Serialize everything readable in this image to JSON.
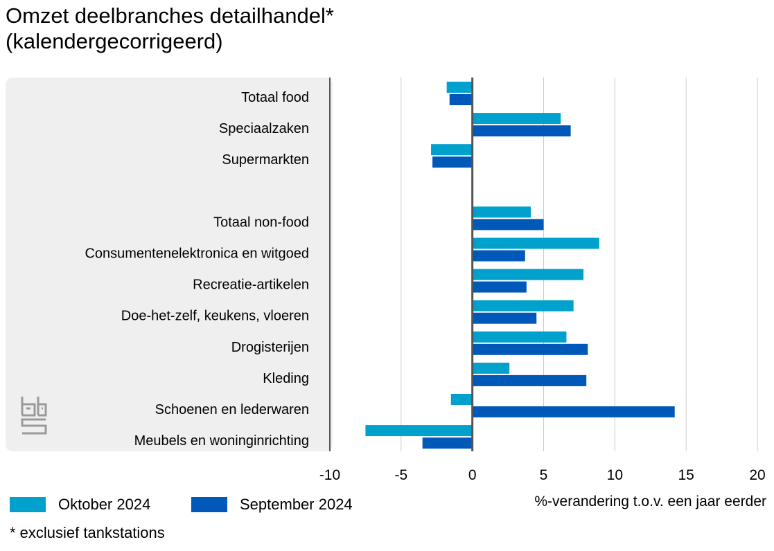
{
  "title_line1": "Omzet deelbranches detailhandel*",
  "title_line2": "(kalendergecorrigeerd)",
  "footnote": "* exclusief tankstations",
  "colors": {
    "oktober": "#00A1CD",
    "september": "#0058B8",
    "panel": "#EFEFEF",
    "grid": "#CCCCCC",
    "axis": "#555555"
  },
  "chart_data": {
    "type": "bar",
    "orientation": "horizontal",
    "title": "Omzet deelbranches detailhandel* (kalendergecorrigeerd)",
    "xlabel": "%-verandering t.o.v. een jaar eerder",
    "xlim": [
      -10,
      20
    ],
    "xticks": [
      -10,
      -5,
      0,
      5,
      10,
      15,
      20
    ],
    "categories": [
      "Totaal food",
      "Speciaalzaken",
      "Supermarkten",
      "",
      "Totaal non-food",
      "Consumentenelektronica en witgoed",
      "Recreatie-artikelen",
      "Doe-het-zelf, keukens, vloeren",
      "Drogisterijen",
      "Kleding",
      "Schoenen en lederwaren",
      "Meubels en woninginrichting"
    ],
    "series": [
      {
        "name": "Oktober 2024",
        "values": [
          -1.8,
          6.2,
          -2.9,
          null,
          4.1,
          8.9,
          7.8,
          7.1,
          6.6,
          2.6,
          -1.5,
          -7.5
        ]
      },
      {
        "name": "September 2024",
        "values": [
          -1.6,
          6.9,
          -2.8,
          null,
          5.0,
          3.7,
          3.8,
          4.5,
          8.1,
          8.0,
          14.2,
          -3.5
        ]
      }
    ],
    "legend_position": "bottom-left",
    "grid": true
  }
}
